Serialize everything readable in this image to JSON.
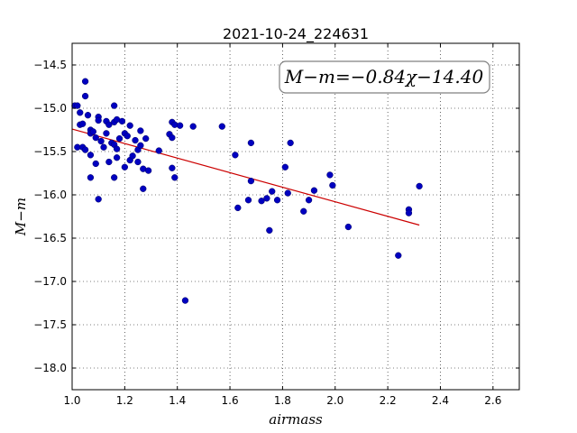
{
  "chart_data": {
    "type": "scatter",
    "title": "2021-10-24_224631",
    "xlabel": "airmass",
    "ylabel": "M−m",
    "xlim": [
      1.0,
      2.7
    ],
    "ylim": [
      -18.25,
      -14.25
    ],
    "y_inverted": true,
    "grid": true,
    "grid_style": "dotted",
    "x_ticks": [
      "1.0",
      "1.2",
      "1.4",
      "1.6",
      "1.8",
      "2.0",
      "2.2",
      "2.4",
      "2.6"
    ],
    "y_ticks": [
      "−14.5",
      "−15.0",
      "−15.5",
      "−16.0",
      "−16.5",
      "−17.0",
      "−17.5",
      "−18.0"
    ],
    "x_tick_values": [
      1.0,
      1.2,
      1.4,
      1.6,
      1.8,
      2.0,
      2.2,
      2.4,
      2.6
    ],
    "y_tick_values": [
      -14.5,
      -15.0,
      -15.5,
      -16.0,
      -16.5,
      -17.0,
      -17.5,
      -18.0
    ],
    "annotation": "M−m=−0.84χ−14.40",
    "point_color": "#0000c0",
    "fit_color": "#cc0000",
    "fit": {
      "slope": -0.84,
      "intercept": -14.4,
      "x_range": [
        1.0,
        2.32
      ]
    },
    "points": [
      [
        1.01,
        -14.97
      ],
      [
        1.02,
        -14.97
      ],
      [
        1.03,
        -15.05
      ],
      [
        1.03,
        -15.19
      ],
      [
        1.04,
        -15.18
      ],
      [
        1.05,
        -14.69
      ],
      [
        1.05,
        -14.86
      ],
      [
        1.02,
        -15.45
      ],
      [
        1.04,
        -15.45
      ],
      [
        1.05,
        -15.48
      ],
      [
        1.06,
        -15.08
      ],
      [
        1.07,
        -15.25
      ],
      [
        1.07,
        -15.29
      ],
      [
        1.08,
        -15.27
      ],
      [
        1.07,
        -15.54
      ],
      [
        1.07,
        -15.8
      ],
      [
        1.09,
        -15.64
      ],
      [
        1.09,
        -15.34
      ],
      [
        1.1,
        -15.1
      ],
      [
        1.1,
        -15.14
      ],
      [
        1.11,
        -15.38
      ],
      [
        1.12,
        -15.45
      ],
      [
        1.13,
        -15.15
      ],
      [
        1.13,
        -15.29
      ],
      [
        1.14,
        -15.19
      ],
      [
        1.15,
        -15.4
      ],
      [
        1.14,
        -15.62
      ],
      [
        1.16,
        -15.42
      ],
      [
        1.17,
        -15.47
      ],
      [
        1.16,
        -14.97
      ],
      [
        1.16,
        -15.16
      ],
      [
        1.17,
        -15.13
      ],
      [
        1.16,
        -15.8
      ],
      [
        1.17,
        -15.57
      ],
      [
        1.18,
        -15.35
      ],
      [
        1.19,
        -15.15
      ],
      [
        1.2,
        -15.29
      ],
      [
        1.2,
        -15.68
      ],
      [
        1.21,
        -15.32
      ],
      [
        1.22,
        -15.2
      ],
      [
        1.22,
        -15.6
      ],
      [
        1.23,
        -15.55
      ],
      [
        1.24,
        -15.37
      ],
      [
        1.25,
        -15.62
      ],
      [
        1.25,
        -15.48
      ],
      [
        1.26,
        -15.43
      ],
      [
        1.26,
        -15.26
      ],
      [
        1.27,
        -15.7
      ],
      [
        1.27,
        -15.93
      ],
      [
        1.28,
        -15.35
      ],
      [
        1.29,
        -15.72
      ],
      [
        1.1,
        -16.05
      ],
      [
        1.33,
        -15.49
      ],
      [
        1.37,
        -15.3
      ],
      [
        1.38,
        -15.34
      ],
      [
        1.38,
        -15.16
      ],
      [
        1.39,
        -15.19
      ],
      [
        1.38,
        -15.69
      ],
      [
        1.39,
        -15.8
      ],
      [
        1.41,
        -15.2
      ],
      [
        1.46,
        -15.21
      ],
      [
        1.43,
        -17.22
      ],
      [
        1.57,
        -15.21
      ],
      [
        1.62,
        -15.54
      ],
      [
        1.63,
        -16.15
      ],
      [
        1.67,
        -16.06
      ],
      [
        1.68,
        -15.84
      ],
      [
        1.68,
        -15.4
      ],
      [
        1.72,
        -16.07
      ],
      [
        1.74,
        -16.04
      ],
      [
        1.75,
        -16.41
      ],
      [
        1.76,
        -15.96
      ],
      [
        1.78,
        -16.06
      ],
      [
        1.81,
        -15.68
      ],
      [
        1.82,
        -15.98
      ],
      [
        1.83,
        -15.4
      ],
      [
        1.88,
        -16.19
      ],
      [
        1.9,
        -16.06
      ],
      [
        1.92,
        -15.95
      ],
      [
        1.98,
        -15.77
      ],
      [
        1.99,
        -15.89
      ],
      [
        2.05,
        -16.37
      ],
      [
        2.24,
        -16.7
      ],
      [
        2.28,
        -16.17
      ],
      [
        2.28,
        -16.21
      ],
      [
        2.32,
        -15.9
      ]
    ]
  }
}
